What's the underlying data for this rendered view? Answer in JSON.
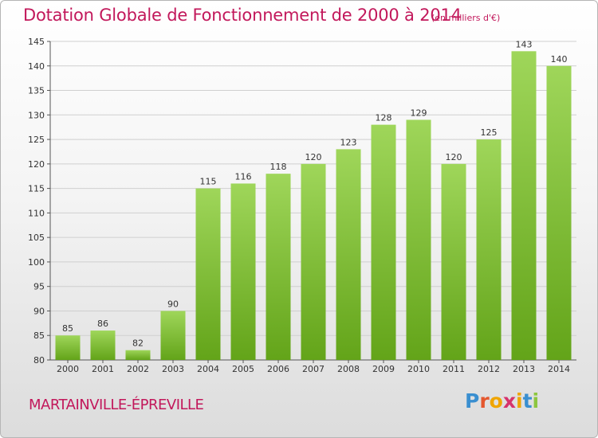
{
  "chart_data": {
    "type": "bar",
    "title": "Dotation Globale de Fonctionnement de 2000 à 2014",
    "subtitle": "(en milliers d'€)",
    "categories": [
      "2000",
      "2001",
      "2002",
      "2003",
      "2004",
      "2005",
      "2006",
      "2007",
      "2008",
      "2009",
      "2010",
      "2011",
      "2012",
      "2013",
      "2014"
    ],
    "values": [
      85,
      86,
      82,
      90,
      115,
      116,
      118,
      120,
      123,
      128,
      129,
      120,
      125,
      143,
      140
    ],
    "ylim": [
      80,
      145
    ],
    "yticks": [
      80,
      85,
      90,
      95,
      100,
      105,
      110,
      115,
      120,
      125,
      130,
      135,
      140,
      145
    ],
    "xlabel": "",
    "ylabel": "",
    "grid": true,
    "bar_color_top": "#9fd65a",
    "bar_color_bottom": "#63a419"
  },
  "footer": {
    "commune": "MARTAINVILLE-ÉPREVILLE",
    "logo_letters": [
      "P",
      "r",
      "o",
      "x",
      "i",
      "t",
      "i"
    ]
  },
  "colors": {
    "accent": "#c2185b",
    "grid": "#cfcfcf"
  }
}
